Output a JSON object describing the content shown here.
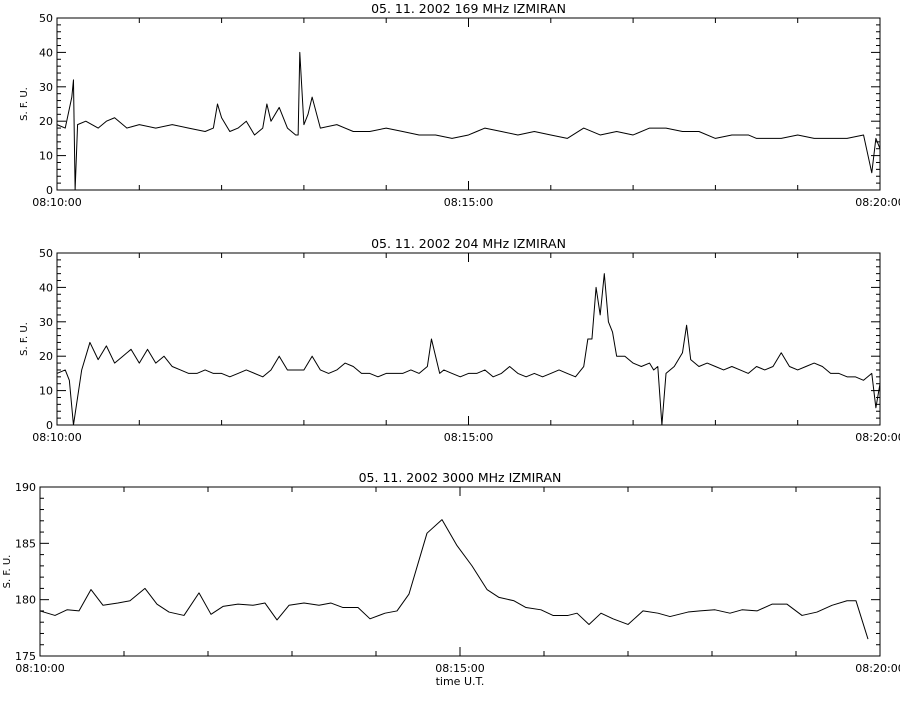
{
  "chart_data": [
    {
      "type": "line",
      "title": "05.  11.  2002    169  MHz    IZMIRAN",
      "ylabel": "S.  F.  U.",
      "xlabel": "",
      "ylim": [
        0,
        50
      ],
      "yticks": [
        0,
        10,
        20,
        30,
        40,
        50
      ],
      "x_ticks": [
        "08:10:00",
        "08:15:00",
        "08:20:00"
      ],
      "x_range_minutes": [
        0,
        10
      ],
      "grid": false,
      "series": [
        {
          "points": [
            [
              0.0,
              19
            ],
            [
              0.1,
              18
            ],
            [
              0.18,
              27
            ],
            [
              0.2,
              32
            ],
            [
              0.22,
              0
            ],
            [
              0.25,
              19
            ],
            [
              0.35,
              20
            ],
            [
              0.5,
              18
            ],
            [
              0.6,
              20
            ],
            [
              0.7,
              21
            ],
            [
              0.85,
              18
            ],
            [
              1.0,
              19
            ],
            [
              1.2,
              18
            ],
            [
              1.4,
              19
            ],
            [
              1.6,
              18
            ],
            [
              1.8,
              17
            ],
            [
              1.9,
              18
            ],
            [
              1.95,
              25
            ],
            [
              2.0,
              21
            ],
            [
              2.1,
              17
            ],
            [
              2.2,
              18
            ],
            [
              2.3,
              20
            ],
            [
              2.4,
              16
            ],
            [
              2.5,
              18
            ],
            [
              2.55,
              25
            ],
            [
              2.6,
              20
            ],
            [
              2.7,
              24
            ],
            [
              2.8,
              18
            ],
            [
              2.9,
              16
            ],
            [
              2.93,
              16
            ],
            [
              2.95,
              40
            ],
            [
              3.0,
              19
            ],
            [
              3.05,
              22
            ],
            [
              3.1,
              27
            ],
            [
              3.2,
              18
            ],
            [
              3.4,
              19
            ],
            [
              3.6,
              17
            ],
            [
              3.8,
              17
            ],
            [
              4.0,
              18
            ],
            [
              4.2,
              17
            ],
            [
              4.4,
              16
            ],
            [
              4.6,
              16
            ],
            [
              4.8,
              15
            ],
            [
              5.0,
              16
            ],
            [
              5.1,
              17
            ],
            [
              5.2,
              18
            ],
            [
              5.4,
              17
            ],
            [
              5.6,
              16
            ],
            [
              5.8,
              17
            ],
            [
              6.0,
              16
            ],
            [
              6.2,
              15
            ],
            [
              6.4,
              18
            ],
            [
              6.6,
              16
            ],
            [
              6.8,
              17
            ],
            [
              7.0,
              16
            ],
            [
              7.2,
              18
            ],
            [
              7.4,
              18
            ],
            [
              7.6,
              17
            ],
            [
              7.8,
              17
            ],
            [
              8.0,
              15
            ],
            [
              8.2,
              16
            ],
            [
              8.4,
              16
            ],
            [
              8.5,
              15
            ],
            [
              8.6,
              15
            ],
            [
              8.8,
              15
            ],
            [
              9.0,
              16
            ],
            [
              9.2,
              15
            ],
            [
              9.4,
              15
            ],
            [
              9.6,
              15
            ],
            [
              9.8,
              16
            ],
            [
              9.9,
              5
            ],
            [
              9.95,
              15
            ],
            [
              10.0,
              12
            ]
          ]
        }
      ]
    },
    {
      "type": "line",
      "title": "05.  11.  2002    204  MHz    IZMIRAN",
      "ylabel": "S.  F.  U.",
      "xlabel": "",
      "ylim": [
        0,
        50
      ],
      "yticks": [
        0,
        10,
        20,
        30,
        40,
        50
      ],
      "x_ticks": [
        "08:10:00",
        "08:15:00",
        "08:20:00"
      ],
      "x_range_minutes": [
        0,
        10
      ],
      "grid": false,
      "series": [
        {
          "points": [
            [
              0.0,
              15
            ],
            [
              0.1,
              16
            ],
            [
              0.15,
              13
            ],
            [
              0.2,
              0
            ],
            [
              0.3,
              16
            ],
            [
              0.4,
              24
            ],
            [
              0.5,
              19
            ],
            [
              0.6,
              23
            ],
            [
              0.7,
              18
            ],
            [
              0.8,
              20
            ],
            [
              0.9,
              22
            ],
            [
              1.0,
              18
            ],
            [
              1.1,
              22
            ],
            [
              1.2,
              18
            ],
            [
              1.3,
              20
            ],
            [
              1.4,
              17
            ],
            [
              1.5,
              16
            ],
            [
              1.6,
              15
            ],
            [
              1.7,
              15
            ],
            [
              1.8,
              16
            ],
            [
              1.9,
              15
            ],
            [
              2.0,
              15
            ],
            [
              2.1,
              14
            ],
            [
              2.2,
              15
            ],
            [
              2.3,
              16
            ],
            [
              2.5,
              14
            ],
            [
              2.6,
              16
            ],
            [
              2.7,
              20
            ],
            [
              2.8,
              16
            ],
            [
              2.9,
              16
            ],
            [
              3.0,
              16
            ],
            [
              3.1,
              20
            ],
            [
              3.2,
              16
            ],
            [
              3.3,
              15
            ],
            [
              3.4,
              16
            ],
            [
              3.5,
              18
            ],
            [
              3.6,
              17
            ],
            [
              3.7,
              15
            ],
            [
              3.8,
              15
            ],
            [
              3.9,
              14
            ],
            [
              4.0,
              15
            ],
            [
              4.1,
              15
            ],
            [
              4.2,
              15
            ],
            [
              4.3,
              16
            ],
            [
              4.4,
              15
            ],
            [
              4.5,
              17
            ],
            [
              4.55,
              25
            ],
            [
              4.6,
              20
            ],
            [
              4.65,
              15
            ],
            [
              4.7,
              16
            ],
            [
              4.8,
              15
            ],
            [
              4.9,
              14
            ],
            [
              5.0,
              15
            ],
            [
              5.1,
              15
            ],
            [
              5.2,
              16
            ],
            [
              5.3,
              14
            ],
            [
              5.4,
              15
            ],
            [
              5.5,
              17
            ],
            [
              5.6,
              15
            ],
            [
              5.7,
              14
            ],
            [
              5.8,
              15
            ],
            [
              5.9,
              14
            ],
            [
              6.0,
              15
            ],
            [
              6.1,
              16
            ],
            [
              6.2,
              15
            ],
            [
              6.3,
              14
            ],
            [
              6.4,
              17
            ],
            [
              6.45,
              25
            ],
            [
              6.5,
              25
            ],
            [
              6.55,
              40
            ],
            [
              6.6,
              32
            ],
            [
              6.65,
              44
            ],
            [
              6.7,
              30
            ],
            [
              6.75,
              27
            ],
            [
              6.8,
              20
            ],
            [
              6.9,
              20
            ],
            [
              7.0,
              18
            ],
            [
              7.1,
              17
            ],
            [
              7.2,
              18
            ],
            [
              7.25,
              16
            ],
            [
              7.3,
              17
            ],
            [
              7.35,
              0
            ],
            [
              7.4,
              15
            ],
            [
              7.5,
              17
            ],
            [
              7.6,
              21
            ],
            [
              7.65,
              29
            ],
            [
              7.7,
              19
            ],
            [
              7.8,
              17
            ],
            [
              7.9,
              18
            ],
            [
              8.0,
              17
            ],
            [
              8.1,
              16
            ],
            [
              8.2,
              17
            ],
            [
              8.3,
              16
            ],
            [
              8.4,
              15
            ],
            [
              8.5,
              17
            ],
            [
              8.6,
              16
            ],
            [
              8.7,
              17
            ],
            [
              8.8,
              21
            ],
            [
              8.9,
              17
            ],
            [
              9.0,
              16
            ],
            [
              9.1,
              17
            ],
            [
              9.2,
              18
            ],
            [
              9.3,
              17
            ],
            [
              9.4,
              15
            ],
            [
              9.5,
              15
            ],
            [
              9.6,
              14
            ],
            [
              9.7,
              14
            ],
            [
              9.8,
              13
            ],
            [
              9.9,
              15
            ],
            [
              9.95,
              5
            ],
            [
              10.0,
              12
            ]
          ]
        }
      ]
    },
    {
      "type": "line",
      "title": "05.  11.  2002    3000  MHz    IZMIRAN",
      "ylabel": "S.  F.  U.",
      "xlabel": "time  U.T.",
      "ylim": [
        175,
        190
      ],
      "yticks": [
        175,
        180,
        185,
        190
      ],
      "x_ticks": [
        "08:10:00",
        "08:15:00",
        "08:20:00"
      ],
      "x_range_minutes": [
        0,
        10
      ],
      "grid": false,
      "series": [
        {
          "points": [
            [
              0.0,
              179.0
            ],
            [
              0.25,
              178.6
            ],
            [
              0.45,
              179.1
            ],
            [
              0.65,
              179.0
            ],
            [
              0.85,
              180.9
            ],
            [
              1.05,
              179.5
            ],
            [
              1.3,
              179.7
            ],
            [
              1.5,
              179.9
            ],
            [
              1.75,
              181.0
            ],
            [
              1.95,
              179.6
            ],
            [
              2.15,
              178.9
            ],
            [
              2.4,
              178.6
            ],
            [
              2.65,
              180.6
            ],
            [
              2.85,
              178.7
            ],
            [
              3.05,
              179.4
            ],
            [
              3.3,
              179.6
            ],
            [
              3.55,
              179.5
            ],
            [
              3.75,
              179.7
            ],
            [
              3.95,
              178.2
            ],
            [
              4.15,
              179.5
            ],
            [
              4.4,
              179.7
            ],
            [
              4.65,
              179.5
            ],
            [
              4.85,
              179.7
            ],
            [
              5.05,
              179.3
            ],
            [
              5.3,
              179.3
            ],
            [
              5.5,
              178.3
            ],
            [
              5.75,
              178.8
            ],
            [
              5.95,
              179.0
            ],
            [
              6.15,
              180.5
            ],
            [
              6.45,
              185.9
            ],
            [
              6.7,
              187.1
            ],
            [
              6.95,
              184.8
            ],
            [
              7.2,
              183.0
            ],
            [
              7.45,
              180.9
            ],
            [
              7.65,
              180.2
            ],
            [
              7.9,
              179.9
            ],
            [
              8.1,
              179.3
            ],
            [
              8.35,
              179.1
            ],
            [
              8.55,
              178.6
            ],
            [
              8.8,
              178.6
            ],
            [
              8.95,
              178.8
            ],
            [
              9.15,
              177.8
            ],
            [
              9.35,
              178.8
            ],
            [
              9.55,
              178.3
            ],
            [
              9.8,
              177.8
            ],
            [
              10.05,
              179.0
            ],
            [
              10.3,
              178.8
            ],
            [
              10.5,
              178.5
            ],
            [
              10.8,
              178.9
            ],
            [
              11.0,
              179.0
            ],
            [
              11.25,
              179.1
            ],
            [
              11.5,
              178.8
            ],
            [
              11.7,
              179.1
            ],
            [
              11.95,
              179.0
            ],
            [
              12.2,
              179.6
            ],
            [
              12.45,
              179.6
            ],
            [
              12.7,
              178.6
            ],
            [
              12.95,
              178.9
            ],
            [
              13.2,
              179.5
            ],
            [
              13.45,
              179.9
            ],
            [
              13.6,
              179.9
            ],
            [
              13.8,
              176.5
            ]
          ]
        }
      ]
    }
  ]
}
